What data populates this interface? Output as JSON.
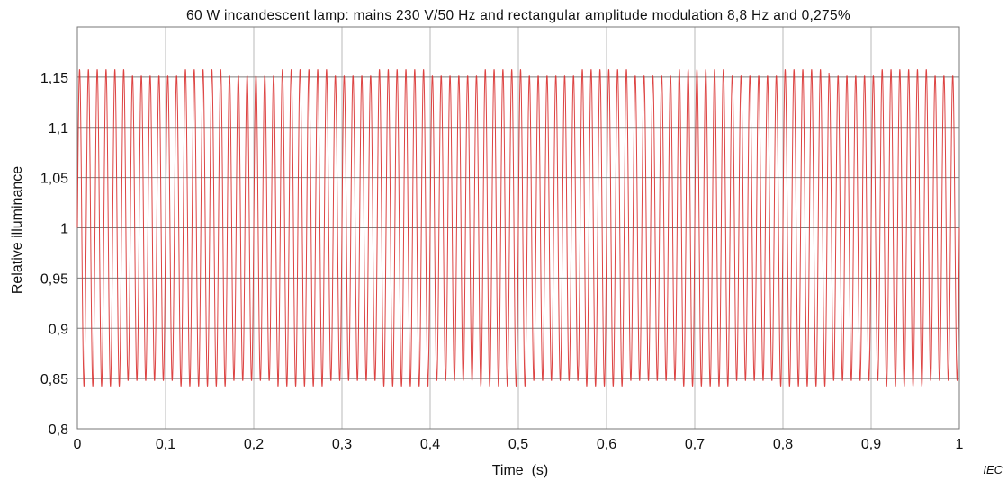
{
  "chart_data": {
    "type": "line",
    "title": "60 W incandescent lamp: mains 230 V/50 Hz and rectangular amplitude modulation 8,8 Hz and 0,275%",
    "xlabel": "Time  (s)",
    "ylabel": "Relative illuminance",
    "xlim": [
      0,
      1
    ],
    "ylim": [
      0.8,
      1.2
    ],
    "x_ticks": [
      0,
      0.1,
      0.2,
      0.3,
      0.4,
      0.5,
      0.6,
      0.7,
      0.8,
      0.9,
      1
    ],
    "x_tick_labels": [
      "0",
      "0,1",
      "0,2",
      "0,3",
      "0,4",
      "0,5",
      "0,6",
      "0,7",
      "0,8",
      "0,9",
      "1"
    ],
    "y_ticks": [
      0.8,
      0.85,
      0.9,
      0.95,
      1,
      1.05,
      1.1,
      1.15
    ],
    "y_tick_labels": [
      "0,8",
      "0,85",
      "0,9",
      "0,95",
      "1",
      "1,05",
      "1,1",
      "1,15"
    ],
    "grid": true,
    "series": [
      {
        "color": "#d9302f",
        "signal": {
          "mean": 1.0,
          "ripple_amplitude": 0.155,
          "ripple_frequency_hz": 100,
          "modulation_frequency_hz": 8.8,
          "modulation_depth_percent": 0.275,
          "min": 0.84,
          "max": 1.165
        }
      }
    ],
    "credit": "IEC"
  }
}
